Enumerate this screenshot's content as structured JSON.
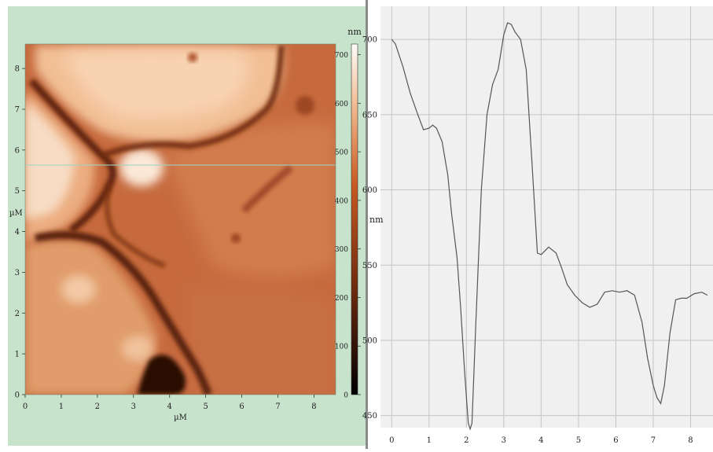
{
  "image_panel": {
    "x_axis": {
      "label": "µM",
      "ticks": [
        "0",
        "1",
        "2",
        "3",
        "4",
        "5",
        "6",
        "7",
        "8"
      ]
    },
    "y_axis": {
      "label": "µM",
      "ticks": [
        "0",
        "1",
        "2",
        "3",
        "4",
        "5",
        "6",
        "7",
        "8"
      ]
    },
    "colorbar": {
      "unit": "nm",
      "ticks": [
        "0",
        "100",
        "200",
        "300",
        "400",
        "500",
        "600",
        "700"
      ]
    }
  },
  "chart_data": {
    "type": "line",
    "title": "",
    "xlabel": "",
    "ylabel": "nm",
    "xlim": [
      -0.3,
      8.6
    ],
    "ylim": [
      442,
      722
    ],
    "x_ticks": [
      "0",
      "1",
      "2",
      "3",
      "4",
      "5",
      "6",
      "7",
      "8"
    ],
    "y_ticks": [
      "450",
      "500",
      "550",
      "600",
      "650",
      "700"
    ],
    "grid": true,
    "series": [
      {
        "name": "",
        "color": "#555555",
        "x": [
          0,
          0.1,
          0.3,
          0.5,
          0.7,
          0.85,
          1.0,
          1.1,
          1.2,
          1.35,
          1.5,
          1.6,
          1.75,
          1.85,
          1.95,
          2.05,
          2.1,
          2.15,
          2.25,
          2.4,
          2.55,
          2.7,
          2.85,
          3.0,
          3.1,
          3.2,
          3.3,
          3.45,
          3.6,
          3.75,
          3.9,
          4.0,
          4.2,
          4.4,
          4.55,
          4.7,
          4.9,
          5.1,
          5.3,
          5.5,
          5.7,
          5.9,
          6.1,
          6.3,
          6.5,
          6.7,
          6.85,
          7.0,
          7.1,
          7.2,
          7.3,
          7.45,
          7.6,
          7.75,
          7.9,
          8.1,
          8.3,
          8.45
        ],
        "y": [
          700,
          697,
          682,
          664,
          650,
          640,
          641,
          643,
          641,
          632,
          610,
          585,
          555,
          520,
          480,
          445,
          441,
          445,
          510,
          600,
          650,
          670,
          680,
          703,
          711,
          710,
          705,
          700,
          680,
          620,
          558,
          557,
          562,
          558,
          548,
          537,
          530,
          525,
          522,
          524,
          532,
          533,
          532,
          533,
          530,
          512,
          488,
          470,
          462,
          458,
          470,
          505,
          527,
          528,
          528,
          531,
          532,
          530
        ]
      }
    ]
  }
}
